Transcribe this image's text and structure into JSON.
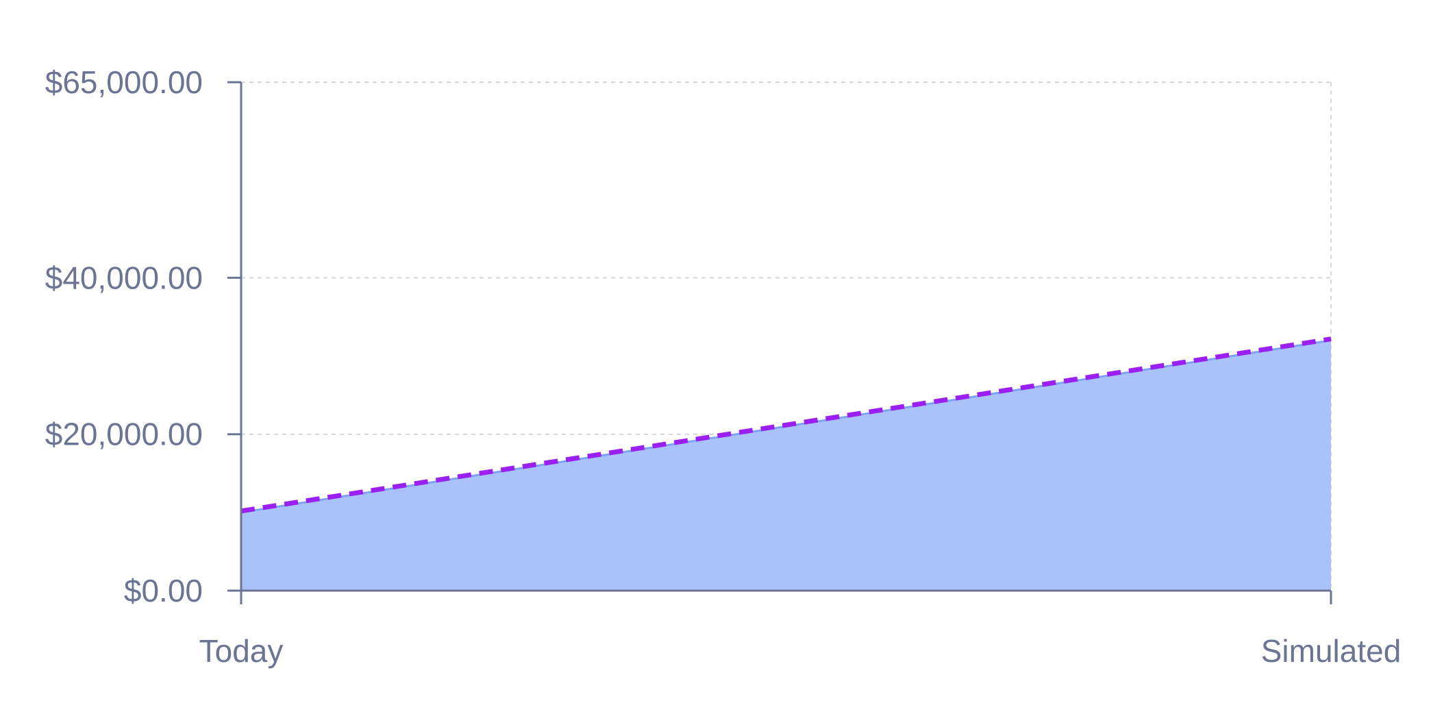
{
  "chart_data": {
    "type": "area",
    "categories": [
      "Today",
      "Simulated"
    ],
    "series": [
      {
        "values": [
          10000,
          32000
        ],
        "style": "area",
        "color": "#a9c2fa",
        "line_color": "#7ea3f5"
      },
      {
        "values": [
          10000,
          32000
        ],
        "style": "dashed-line",
        "color": "#9b1ff0"
      }
    ],
    "y_ticks": [
      0,
      20000,
      40000,
      65000
    ],
    "y_tick_labels": [
      "$0.00",
      "$20,000.00",
      "$40,000.00",
      "$65,000.00"
    ],
    "x_tick_labels": [
      "Today",
      "Simulated"
    ],
    "ylim": [
      0,
      65000
    ],
    "grid": true,
    "axis_color": "#6b7593",
    "grid_color": "#d4d7de"
  }
}
